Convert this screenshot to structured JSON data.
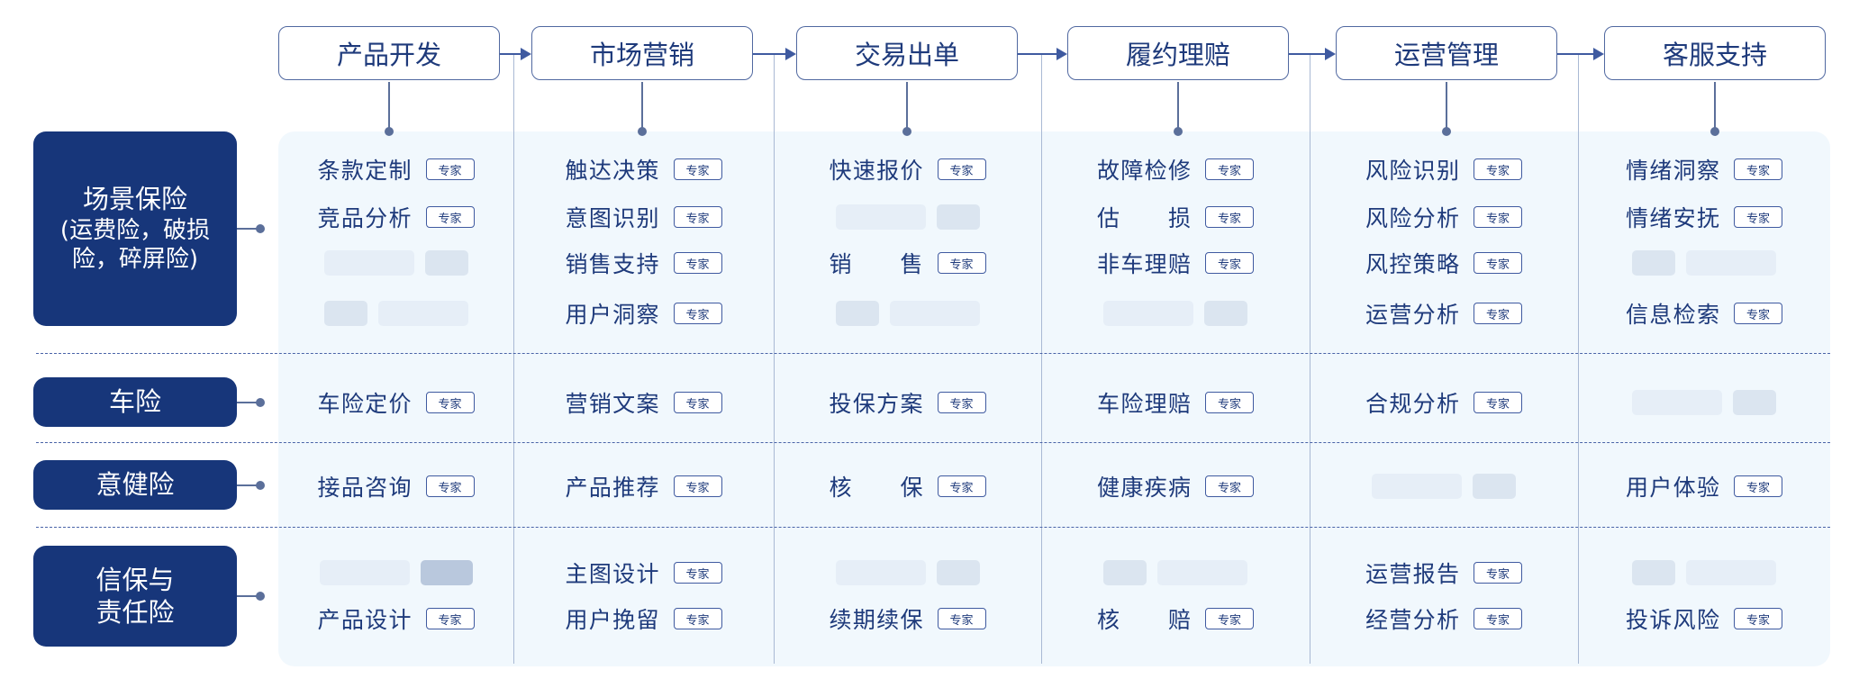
{
  "stages": [
    "产品开发",
    "市场营销",
    "交易出单",
    "履约理赔",
    "运营管理",
    "客服支持"
  ],
  "categories": [
    {
      "title": "场景保险",
      "subtitle": "(运费险，破损险，碎屏险)"
    },
    {
      "title": "车险",
      "subtitle": ""
    },
    {
      "title": "意健险",
      "subtitle": ""
    },
    {
      "title": "信保与\n责任险",
      "subtitle": ""
    }
  ],
  "badge_label": "专家",
  "colors": {
    "navy": "#17367a",
    "text": "#1e3a7b",
    "panel": "#f1f8fd",
    "divider": "#a9b9d4",
    "dash": "#4a64a8"
  },
  "grid": [
    [
      [
        {
          "t": "条款定制"
        },
        {
          "t": "触达决策"
        },
        {
          "t": "快速报价"
        },
        {
          "t": "故障检修"
        },
        {
          "t": "风险识别"
        },
        {
          "t": "情绪洞察"
        }
      ],
      [
        {
          "t": "竞品分析"
        },
        {
          "t": "意图识别"
        },
        {
          "s": "wn"
        },
        {
          "t": "估损"
        },
        {
          "t": "风险分析"
        },
        {
          "t": "情绪安抚"
        }
      ],
      [
        {
          "s": "wn"
        },
        {
          "t": "销售支持"
        },
        {
          "t": "销售"
        },
        {
          "t": "非车理赔"
        },
        {
          "t": "风控策略"
        },
        {
          "s": "nw"
        }
      ],
      [
        {
          "s": "nw"
        },
        {
          "t": "用户洞察"
        },
        {
          "s": "nw"
        },
        {
          "s": "wn"
        },
        {
          "t": "运营分析"
        },
        {
          "t": "信息检索"
        }
      ]
    ],
    [
      [
        {
          "t": "车险定价"
        },
        {
          "t": "营销文案"
        },
        {
          "t": "投保方案"
        },
        {
          "t": "车险理赔"
        },
        {
          "t": "合规分析"
        },
        {
          "s": "wn"
        }
      ]
    ],
    [
      [
        {
          "t": "接品咨询"
        },
        {
          "t": "产品推荐"
        },
        {
          "t": "核保"
        },
        {
          "t": "健康疾病"
        },
        {
          "s": "wn"
        },
        {
          "t": "用户体验"
        }
      ]
    ],
    [
      [
        {
          "s": "wd"
        },
        {
          "t": "主图设计"
        },
        {
          "s": "wn"
        },
        {
          "s": "nw"
        },
        {
          "t": "运营报告"
        },
        {
          "s": "nw"
        }
      ],
      [
        {
          "t": "产品设计"
        },
        {
          "t": "用户挽留"
        },
        {
          "t": "续期续保"
        },
        {
          "t": "核赔"
        },
        {
          "t": "经营分析"
        },
        {
          "t": "投诉风险"
        }
      ]
    ]
  ]
}
